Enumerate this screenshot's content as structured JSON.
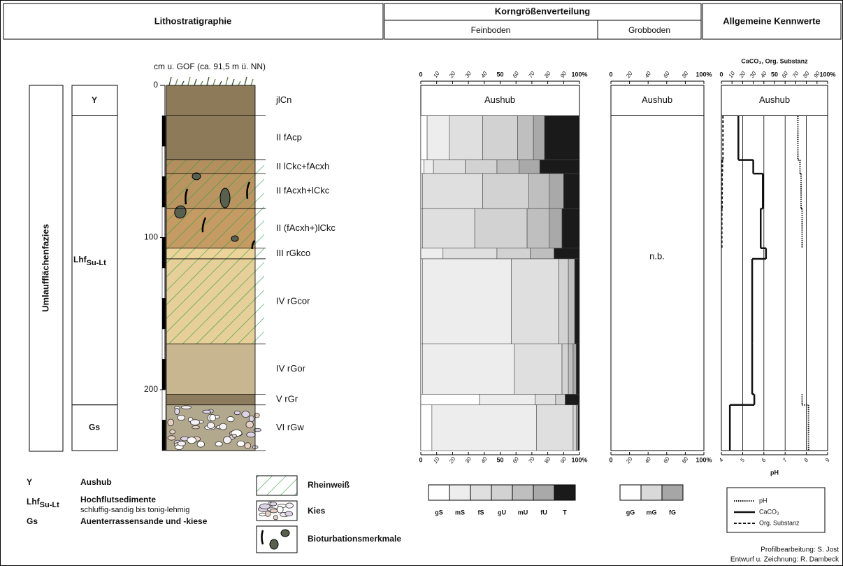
{
  "header": {
    "lithostratigraphy": "Lithostratigraphie",
    "grain_size": "Korngrößenverteilung",
    "fine_soil": "Feinboden",
    "coarse_soil": "Grobboden",
    "general": "Allgemeine Kennwerte"
  },
  "facies": "Umlaufflächenfazies",
  "depth_axis": {
    "label": "cm u. GOF (ca. 91,5 m ü. NN)",
    "lim": [
      0,
      240
    ],
    "ticks": [
      0,
      100,
      200
    ]
  },
  "units": [
    {
      "label": "Y",
      "top": 0,
      "bottom": 20
    },
    {
      "label": "Lhf",
      "subscript": "Su-Lt",
      "top": 20,
      "bottom": 210
    },
    {
      "label": "Gs",
      "top": 210,
      "bottom": 240
    }
  ],
  "horizons": [
    {
      "label": "jlCn",
      "top": 0,
      "bottom": 20,
      "color": "#8c7a58"
    },
    {
      "label": "II fAcp",
      "top": 20,
      "bottom": 49,
      "color": "#8c7a58"
    },
    {
      "label": "II lCkc+fAcxh",
      "top": 49,
      "bottom": 58,
      "color": "#b38f5e"
    },
    {
      "label": "II fAcxh+lCkc",
      "top": 58,
      "bottom": 81,
      "color": "#bb9561"
    },
    {
      "label": "II (fAcxh+)lCkc",
      "top": 81,
      "bottom": 107,
      "color": "#c59b63"
    },
    {
      "label": "III rGkco",
      "top": 107,
      "bottom": 114,
      "color": "#ecd39a"
    },
    {
      "label": "IV rGcor",
      "top": 114,
      "bottom": 170,
      "color": "#e6cf98"
    },
    {
      "label": "IV rGor",
      "top": 170,
      "bottom": 203,
      "color": "#c8b690"
    },
    {
      "label": "V rGr",
      "top": 203,
      "bottom": 210,
      "color": "#8c7b5c"
    },
    {
      "label": "VI rGw",
      "top": 210,
      "bottom": 240,
      "color": "#b2a88e"
    }
  ],
  "fine_soil": {
    "lim": [
      0,
      100
    ],
    "ticks": [
      0,
      10,
      20,
      30,
      40,
      50,
      60,
      70,
      80,
      90,
      {
        "value": 100,
        "label": "100%"
      }
    ],
    "no_data_label": "Aushub",
    "series": [
      {
        "name": "gS",
        "color": "#ffffff",
        "values": [
          null,
          4,
          2,
          0,
          0,
          0,
          1,
          1,
          37,
          7
        ]
      },
      {
        "name": "mS",
        "color": "#ededed",
        "values": [
          null,
          14,
          6,
          1,
          1,
          14,
          56,
          58,
          35,
          66
        ]
      },
      {
        "name": "fS",
        "color": "#dfdfdf",
        "values": [
          null,
          21,
          20,
          38,
          33,
          34,
          30,
          30,
          13,
          23
        ]
      },
      {
        "name": "gU",
        "color": "#d2d2d2",
        "values": [
          null,
          22,
          20,
          29,
          33,
          21,
          6,
          4,
          6,
          2
        ]
      },
      {
        "name": "mU",
        "color": "#bfbfbf",
        "values": [
          null,
          10,
          14,
          13,
          14,
          15,
          4,
          3,
          0,
          1
        ]
      },
      {
        "name": "fU",
        "color": "#a9a9a9",
        "values": [
          null,
          7,
          13,
          9,
          8,
          0,
          0,
          2,
          0,
          0
        ]
      },
      {
        "name": "T",
        "color": "#1a1a1a",
        "values": [
          null,
          22,
          25,
          10,
          11,
          16,
          3,
          2,
          9,
          1
        ]
      }
    ]
  },
  "coarse_soil": {
    "lim": [
      0,
      100
    ],
    "ticks": [
      0,
      20,
      40,
      60,
      80,
      {
        "value": 100,
        "label": "100%"
      }
    ],
    "no_data_label": "Aushub",
    "not_determined_label": "n.b.",
    "series": [
      {
        "name": "gG",
        "color": "#ffffff"
      },
      {
        "name": "mG",
        "color": "#d9d9d9"
      },
      {
        "name": "fG",
        "color": "#a6a6a6"
      }
    ]
  },
  "chemistry": {
    "top_axis_label": "CaCO₃, Org. Substanz",
    "top_lim": [
      0,
      100
    ],
    "top_ticks": [
      0,
      10,
      20,
      30,
      40,
      50,
      60,
      70,
      80,
      90,
      {
        "value": 100,
        "label": "100%"
      }
    ],
    "bottom_axis_label": "pH",
    "bottom_lim": [
      4,
      9
    ],
    "bottom_ticks": [
      4,
      5,
      6,
      7,
      8,
      9
    ],
    "grid": true,
    "no_data_label": "Aushub",
    "series": [
      {
        "name": "pH",
        "axis": "bottom",
        "style": "dotted",
        "color": "#111111",
        "values": [
          null,
          7.6,
          7.7,
          7.75,
          7.8,
          null,
          null,
          null,
          7.8,
          8.1
        ]
      },
      {
        "name": "CaCO₃",
        "axis": "top",
        "style": "solid",
        "color": "#111111",
        "values": [
          null,
          16,
          30,
          39,
          37,
          42,
          29,
          29,
          31,
          8
        ]
      },
      {
        "name": "Org. Substanz",
        "axis": "top",
        "style": "dashed",
        "color": "#111111",
        "values": [
          null,
          1.5,
          1.0,
          0.7,
          0.4,
          null,
          null,
          null,
          null,
          null
        ]
      }
    ]
  },
  "legend": {
    "units": [
      {
        "symbol": "Y",
        "text": "Aushub"
      },
      {
        "symbol": "Lhf",
        "subscript": "Su-Lt",
        "text": "Hochflutsedimente",
        "note": "schluffig-sandig bis tonig-lehmig"
      },
      {
        "symbol": "Gs",
        "text": "Auenterrassensande und -kiese"
      }
    ],
    "symbols": [
      "Rheinweiß",
      "Kies",
      "Bioturbationsmerkmale"
    ]
  },
  "credits": [
    "Profilbearbeitung: S. Jost",
    "Entwurf u. Zeichnung: R. Dambeck"
  ]
}
